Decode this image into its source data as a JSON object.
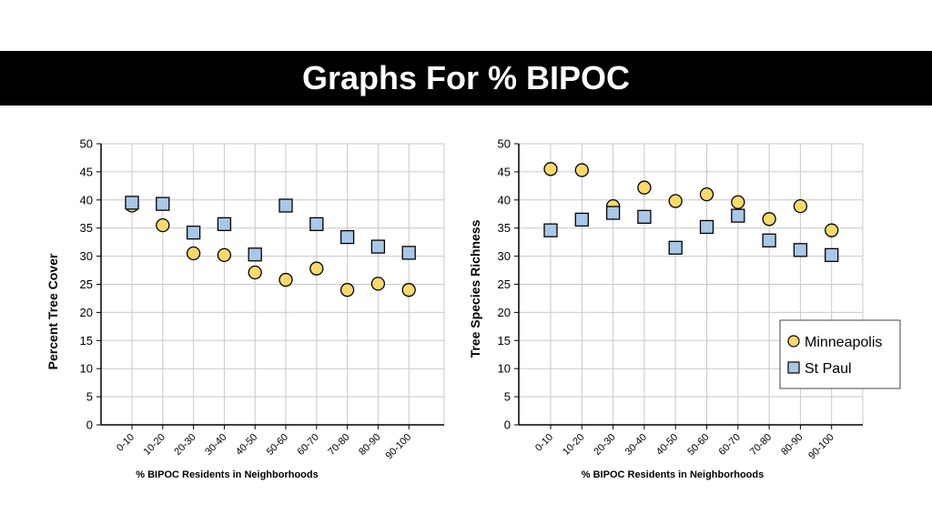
{
  "page": {
    "title": "Graphs For % BIPOC"
  },
  "colors": {
    "minneapolis": "#f9d96b",
    "stpaul": "#a8c8e8",
    "grid": "#c8c8c8",
    "axis": "#000000"
  },
  "chart_data": [
    {
      "type": "scatter",
      "title": "",
      "xlabel": "% BIPOC Residents in Neighborhoods",
      "ylabel": "Percent Tree Cover",
      "categories": [
        "0-10",
        "10-20",
        "20-30",
        "30-40",
        "40-50",
        "50-60",
        "60-70",
        "70-80",
        "80-90",
        "90-100"
      ],
      "ylim": [
        0,
        50
      ],
      "yticks": [
        "0",
        "5",
        "10",
        "15",
        "20",
        "25",
        "30",
        "35",
        "40",
        "45",
        "50"
      ],
      "grid": true,
      "series": [
        {
          "name": "Minneapolis",
          "marker": "circle",
          "values": [
            39.0,
            35.5,
            30.5,
            30.2,
            27.1,
            25.8,
            27.8,
            24.0,
            25.1,
            24.0
          ]
        },
        {
          "name": "St Paul",
          "marker": "square",
          "values": [
            39.5,
            39.3,
            34.2,
            35.7,
            30.3,
            39.0,
            35.7,
            33.4,
            31.7,
            30.6
          ]
        }
      ]
    },
    {
      "type": "scatter",
      "title": "",
      "xlabel": "% BIPOC Residents in Neighborhoods",
      "ylabel": "Tree Species Richness",
      "categories": [
        "0-10",
        "10-20",
        "20-30",
        "30-40",
        "40-50",
        "50-60",
        "60-70",
        "70-80",
        "80-90",
        "90-100"
      ],
      "ylim": [
        0,
        50
      ],
      "yticks": [
        "0",
        "5",
        "10",
        "15",
        "20",
        "25",
        "30",
        "35",
        "40",
        "45",
        "50"
      ],
      "grid": true,
      "legend_placement": "bottom-right",
      "series": [
        {
          "name": "Minneapolis",
          "marker": "circle",
          "values": [
            45.5,
            45.3,
            38.9,
            42.2,
            39.8,
            41.0,
            39.6,
            36.6,
            38.9,
            34.6
          ]
        },
        {
          "name": "St Paul",
          "marker": "square",
          "values": [
            34.6,
            36.5,
            37.7,
            37.0,
            31.5,
            35.2,
            37.2,
            32.8,
            31.1,
            30.2
          ]
        }
      ]
    }
  ]
}
